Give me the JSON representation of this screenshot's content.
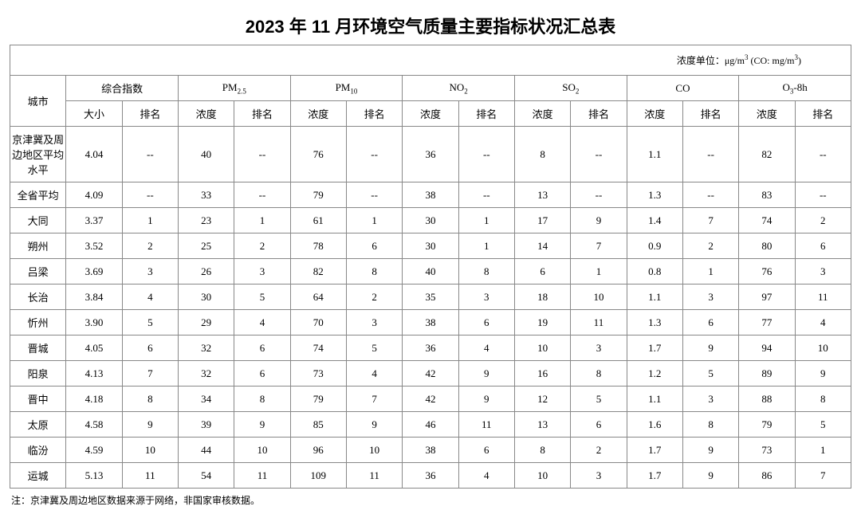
{
  "title": "2023 年 11 月环境空气质量主要指标状况汇总表",
  "unit_note": "浓度单位：μg/m³ (CO: mg/m³)",
  "footnote": "注：京津冀及周边地区数据来源于网络，非国家审核数据。",
  "header": {
    "city": "城市",
    "groups": {
      "composite": "综合指数",
      "pm25_html": "PM<span class=\"sub\">2.5</span>",
      "pm10_html": "PM<span class=\"sub\">10</span>",
      "no2_html": "NO<span class=\"sub\">2</span>",
      "so2_html": "SO<span class=\"sub\">2</span>",
      "co": "CO",
      "o3_html": "O<span class=\"sub\">3</span>-8h"
    },
    "sub": {
      "size": "大小",
      "rank": "排名",
      "conc": "浓度"
    }
  },
  "rows": [
    {
      "city": "京津冀及周边地区平均水平",
      "composite": "4.04",
      "composite_r": "--",
      "pm25": "40",
      "pm25_r": "--",
      "pm10": "76",
      "pm10_r": "--",
      "no2": "36",
      "no2_r": "--",
      "so2": "8",
      "so2_r": "--",
      "co": "1.1",
      "co_r": "--",
      "o3": "82",
      "o3_r": "--",
      "tall": true
    },
    {
      "city": "全省平均",
      "composite": "4.09",
      "composite_r": "--",
      "pm25": "33",
      "pm25_r": "--",
      "pm10": "79",
      "pm10_r": "--",
      "no2": "38",
      "no2_r": "--",
      "so2": "13",
      "so2_r": "--",
      "co": "1.3",
      "co_r": "--",
      "o3": "83",
      "o3_r": "--"
    },
    {
      "city": "大同",
      "composite": "3.37",
      "composite_r": "1",
      "pm25": "23",
      "pm25_r": "1",
      "pm10": "61",
      "pm10_r": "1",
      "no2": "30",
      "no2_r": "1",
      "so2": "17",
      "so2_r": "9",
      "co": "1.4",
      "co_r": "7",
      "o3": "74",
      "o3_r": "2"
    },
    {
      "city": "朔州",
      "composite": "3.52",
      "composite_r": "2",
      "pm25": "25",
      "pm25_r": "2",
      "pm10": "78",
      "pm10_r": "6",
      "no2": "30",
      "no2_r": "1",
      "so2": "14",
      "so2_r": "7",
      "co": "0.9",
      "co_r": "2",
      "o3": "80",
      "o3_r": "6"
    },
    {
      "city": "吕梁",
      "composite": "3.69",
      "composite_r": "3",
      "pm25": "26",
      "pm25_r": "3",
      "pm10": "82",
      "pm10_r": "8",
      "no2": "40",
      "no2_r": "8",
      "so2": "6",
      "so2_r": "1",
      "co": "0.8",
      "co_r": "1",
      "o3": "76",
      "o3_r": "3"
    },
    {
      "city": "长治",
      "composite": "3.84",
      "composite_r": "4",
      "pm25": "30",
      "pm25_r": "5",
      "pm10": "64",
      "pm10_r": "2",
      "no2": "35",
      "no2_r": "3",
      "so2": "18",
      "so2_r": "10",
      "co": "1.1",
      "co_r": "3",
      "o3": "97",
      "o3_r": "11"
    },
    {
      "city": "忻州",
      "composite": "3.90",
      "composite_r": "5",
      "pm25": "29",
      "pm25_r": "4",
      "pm10": "70",
      "pm10_r": "3",
      "no2": "38",
      "no2_r": "6",
      "so2": "19",
      "so2_r": "11",
      "co": "1.3",
      "co_r": "6",
      "o3": "77",
      "o3_r": "4"
    },
    {
      "city": "晋城",
      "composite": "4.05",
      "composite_r": "6",
      "pm25": "32",
      "pm25_r": "6",
      "pm10": "74",
      "pm10_r": "5",
      "no2": "36",
      "no2_r": "4",
      "so2": "10",
      "so2_r": "3",
      "co": "1.7",
      "co_r": "9",
      "o3": "94",
      "o3_r": "10"
    },
    {
      "city": "阳泉",
      "composite": "4.13",
      "composite_r": "7",
      "pm25": "32",
      "pm25_r": "6",
      "pm10": "73",
      "pm10_r": "4",
      "no2": "42",
      "no2_r": "9",
      "so2": "16",
      "so2_r": "8",
      "co": "1.2",
      "co_r": "5",
      "o3": "89",
      "o3_r": "9"
    },
    {
      "city": "晋中",
      "composite": "4.18",
      "composite_r": "8",
      "pm25": "34",
      "pm25_r": "8",
      "pm10": "79",
      "pm10_r": "7",
      "no2": "42",
      "no2_r": "9",
      "so2": "12",
      "so2_r": "5",
      "co": "1.1",
      "co_r": "3",
      "o3": "88",
      "o3_r": "8"
    },
    {
      "city": "太原",
      "composite": "4.58",
      "composite_r": "9",
      "pm25": "39",
      "pm25_r": "9",
      "pm10": "85",
      "pm10_r": "9",
      "no2": "46",
      "no2_r": "11",
      "so2": "13",
      "so2_r": "6",
      "co": "1.6",
      "co_r": "8",
      "o3": "79",
      "o3_r": "5"
    },
    {
      "city": "临汾",
      "composite": "4.59",
      "composite_r": "10",
      "pm25": "44",
      "pm25_r": "10",
      "pm10": "96",
      "pm10_r": "10",
      "no2": "38",
      "no2_r": "6",
      "so2": "8",
      "so2_r": "2",
      "co": "1.7",
      "co_r": "9",
      "o3": "73",
      "o3_r": "1"
    },
    {
      "city": "运城",
      "composite": "5.13",
      "composite_r": "11",
      "pm25": "54",
      "pm25_r": "11",
      "pm10": "109",
      "pm10_r": "11",
      "no2": "36",
      "no2_r": "4",
      "so2": "10",
      "so2_r": "3",
      "co": "1.7",
      "co_r": "9",
      "o3": "86",
      "o3_r": "7"
    }
  ],
  "style": {
    "border_color": "#888888",
    "bg": "#ffffff",
    "title_fontsize": 22,
    "cell_fontsize": 13,
    "note_fontsize": 12
  }
}
